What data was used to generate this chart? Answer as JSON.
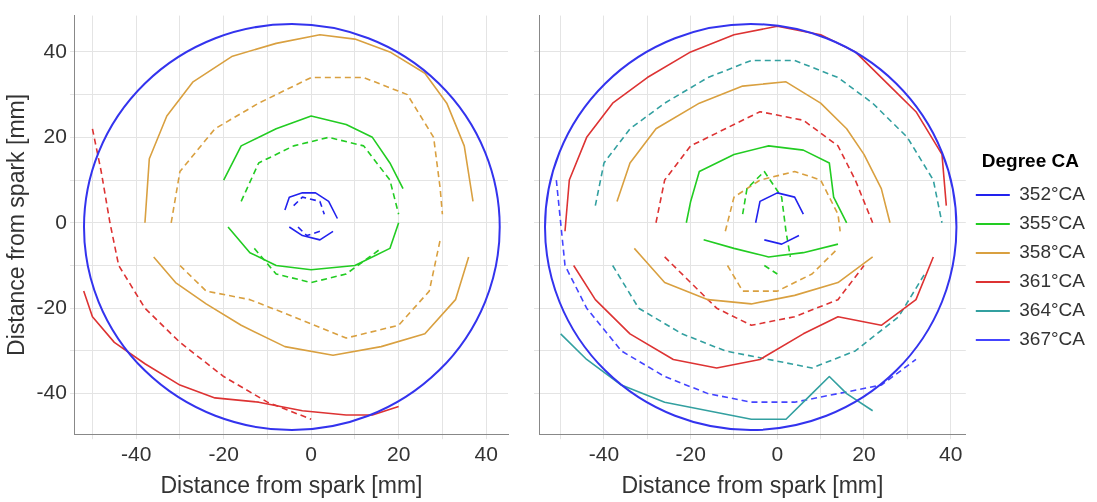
{
  "chart_data": [
    {
      "type": "line",
      "xlabel": "Distance from spark [mm]",
      "ylabel": "Distance from spark [mm]",
      "xlim": [
        -54,
        45
      ],
      "ylim": [
        -49.5,
        48.5
      ],
      "xticks": [
        {
          "value": -50,
          "label": null
        },
        -40,
        {
          "value": -30,
          "label": null
        },
        -20,
        {
          "value": -10,
          "label": null
        },
        0,
        {
          "value": 10,
          "label": null
        },
        20,
        {
          "value": 30,
          "label": null
        },
        40
      ],
      "yticks": [
        -40,
        {
          "value": -30,
          "label": null
        },
        -20,
        {
          "value": -10,
          "label": null
        },
        0,
        {
          "value": 10,
          "label": null
        },
        20,
        {
          "value": 30,
          "label": null
        },
        40
      ],
      "grid": true,
      "legend": false,
      "marker": "none",
      "series": [
        {
          "color": "#2222ee",
          "line_style": "solid",
          "x": [
            -6,
            -5,
            -2,
            1,
            4,
            6
          ],
          "values": [
            3,
            6,
            7,
            7,
            5,
            1
          ]
        },
        {
          "color": "#2222ee",
          "line_style": "solid",
          "x": [
            -5,
            -2,
            2,
            5
          ],
          "values": [
            -1,
            -3,
            -4,
            -2
          ]
        },
        {
          "color": "#2222ee",
          "line_style": "dashed",
          "x": [
            -4,
            -2,
            2,
            3
          ],
          "values": [
            4,
            6,
            5,
            2
          ]
        },
        {
          "color": "#2222ee",
          "line_style": "dashed",
          "x": [
            -3,
            -1,
            2
          ],
          "values": [
            -1,
            -3,
            -2
          ]
        },
        {
          "color": "#22cc22",
          "line_style": "solid",
          "x": [
            -20,
            -16,
            -8,
            0,
            8,
            14,
            18,
            21
          ],
          "values": [
            10,
            18,
            22,
            25,
            23,
            20,
            14,
            8
          ]
        },
        {
          "color": "#22cc22",
          "line_style": "solid",
          "x": [
            -19,
            -14,
            -8,
            0,
            10,
            18,
            20
          ],
          "values": [
            -1,
            -7,
            -10,
            -11,
            -10,
            -6,
            0
          ]
        },
        {
          "color": "#22cc22",
          "line_style": "dashed",
          "x": [
            -16,
            -12,
            -4,
            4,
            12,
            18,
            20
          ],
          "values": [
            5,
            14,
            18,
            20,
            18,
            10,
            2
          ]
        },
        {
          "color": "#22cc22",
          "line_style": "dashed",
          "x": [
            -13,
            -8,
            0,
            8,
            16
          ],
          "values": [
            -6,
            -12,
            -14,
            -12,
            -6
          ]
        },
        {
          "color": "#d9a040",
          "line_style": "solid",
          "x": [
            -38,
            -37,
            -33,
            -27,
            -18,
            -8,
            2,
            10,
            18,
            26,
            31,
            35,
            37
          ],
          "values": [
            0,
            15,
            25,
            33,
            39,
            42,
            44,
            43,
            40,
            35,
            28,
            18,
            5
          ]
        },
        {
          "color": "#d9a040",
          "line_style": "solid",
          "x": [
            -36,
            -31,
            -24,
            -16,
            -6,
            5,
            16,
            26,
            33,
            36
          ],
          "values": [
            -8,
            -14,
            -19,
            -24,
            -29,
            -31,
            -29,
            -26,
            -18,
            -8
          ]
        },
        {
          "color": "#d9a040",
          "line_style": "dashed",
          "x": [
            -32,
            -30,
            -22,
            -12,
            0,
            12,
            22,
            28,
            29.5,
            30
          ],
          "values": [
            0,
            12,
            22,
            28,
            34,
            34,
            30,
            20,
            8,
            2
          ]
        },
        {
          "color": "#d9a040",
          "line_style": "dashed",
          "x": [
            -30,
            -24,
            -14,
            -4,
            8,
            20,
            27,
            29.5
          ],
          "values": [
            -10,
            -16,
            -18,
            -22,
            -27,
            -24,
            -16,
            -4
          ]
        },
        {
          "color": "#dd3333",
          "line_style": "solid",
          "x": [
            -52,
            -50,
            -45,
            -38,
            -30,
            -22,
            -12,
            -2,
            8,
            14,
            20
          ],
          "values": [
            -16,
            -22,
            -28,
            -33,
            -38,
            -41,
            -42,
            -44,
            -45,
            -45,
            -43
          ]
        },
        {
          "color": "#dd3333",
          "line_style": "dashed",
          "x": [
            -50,
            -48,
            -46,
            -44,
            -38,
            -30,
            -20,
            -10,
            0
          ],
          "values": [
            22,
            12,
            0,
            -10,
            -20,
            -28,
            -36,
            -42,
            -46
          ]
        }
      ]
    },
    {
      "type": "line",
      "xlabel": "Distance from spark [mm]",
      "xlim": [
        -55,
        43.5
      ],
      "ylim": [
        -49.5,
        48.5
      ],
      "xticks": [
        {
          "value": -50,
          "label": null
        },
        -40,
        {
          "value": -30,
          "label": null
        },
        -20,
        {
          "value": -10,
          "label": null
        },
        0,
        {
          "value": 10,
          "label": null
        },
        20,
        {
          "value": 30,
          "label": null
        },
        40
      ],
      "yticks": [
        -40,
        {
          "value": -30,
          "label": null
        },
        -20,
        {
          "value": -10,
          "label": null
        },
        0,
        {
          "value": 10,
          "label": null
        },
        20,
        {
          "value": 30,
          "label": null
        },
        40
      ],
      "tick_labels": "x",
      "grid": true,
      "legend": "right",
      "legend_title": "Degree CA",
      "marker": "none",
      "series": [
        {
          "name": "352°CA",
          "color": "#2222ee",
          "line_style": "solid",
          "x": [
            -5,
            -4,
            0,
            4,
            6
          ],
          "values": [
            0,
            5,
            7,
            6,
            2
          ]
        },
        {
          "color": "#2222ee",
          "line_style": "solid",
          "x": [
            -3,
            1,
            5
          ],
          "values": [
            -4,
            -5,
            -3
          ]
        },
        {
          "name": "355°CA",
          "color": "#22cc22",
          "line_style": "solid",
          "x": [
            -21,
            -20,
            -18,
            -10,
            -2,
            6,
            12,
            13,
            16
          ],
          "values": [
            0,
            5,
            12,
            16,
            18,
            17,
            14,
            6,
            0
          ]
        },
        {
          "color": "#22cc22",
          "line_style": "solid",
          "x": [
            -17,
            -10,
            -2,
            6,
            14
          ],
          "values": [
            -4,
            -6,
            -8,
            -7,
            -5
          ]
        },
        {
          "color": "#22cc22",
          "line_style": "dashed",
          "x": [
            -8,
            -7,
            -3,
            1,
            2,
            3
          ],
          "values": [
            2,
            8,
            12,
            6,
            -2,
            -8
          ]
        },
        {
          "color": "#22cc22",
          "line_style": "dashed",
          "x": [
            -3,
            0
          ],
          "values": [
            -10,
            -12
          ]
        },
        {
          "name": "358°CA",
          "color": "#d9a040",
          "line_style": "solid",
          "x": [
            -37,
            -34,
            -28,
            -18,
            -8,
            2,
            10,
            16,
            20,
            24,
            26
          ],
          "values": [
            5,
            14,
            22,
            28,
            32,
            33,
            28,
            22,
            16,
            8,
            0
          ]
        },
        {
          "color": "#d9a040",
          "line_style": "solid",
          "x": [
            -33,
            -26,
            -16,
            -6,
            4,
            14,
            22
          ],
          "values": [
            -6,
            -14,
            -18,
            -19,
            -17,
            -14,
            -8
          ]
        },
        {
          "color": "#d9a040",
          "line_style": "dashed",
          "x": [
            -12,
            -10,
            -4,
            4,
            10,
            14,
            14.5
          ],
          "values": [
            -2,
            6,
            10,
            12,
            10,
            2,
            -2
          ]
        },
        {
          "color": "#d9a040",
          "line_style": "dashed",
          "x": [
            -11.5,
            -8,
            0,
            8,
            14
          ],
          "values": [
            -10,
            -16,
            -16,
            -12,
            -6
          ]
        },
        {
          "name": "361°CA",
          "color": "#dd3333",
          "line_style": "solid",
          "x": [
            -49,
            -48,
            -44,
            -38,
            -30,
            -20,
            -10,
            0,
            10,
            18,
            26,
            32,
            38,
            39
          ],
          "values": [
            -2,
            10,
            20,
            28,
            34,
            40,
            44,
            46,
            44,
            40,
            32,
            26,
            16,
            4
          ]
        },
        {
          "color": "#dd3333",
          "line_style": "solid",
          "x": [
            -47,
            -42,
            -34,
            -24,
            -14,
            -4,
            6,
            14,
            24,
            32,
            36
          ],
          "values": [
            -10,
            -18,
            -26,
            -32,
            -34,
            -32,
            -26,
            -22,
            -24,
            -18,
            -8
          ]
        },
        {
          "color": "#dd3333",
          "line_style": "dashed",
          "x": [
            -28,
            -26,
            -20,
            -12,
            -4,
            6,
            14,
            18,
            22
          ],
          "values": [
            0,
            10,
            18,
            22,
            26,
            24,
            18,
            10,
            0
          ]
        },
        {
          "color": "#dd3333",
          "line_style": "dashed",
          "x": [
            -26,
            -20,
            -14,
            -6,
            4,
            14,
            20
          ],
          "values": [
            -8,
            -14,
            -20,
            -24,
            -22,
            -18,
            -10
          ]
        },
        {
          "name": "364°CA",
          "color": "#33a0a0",
          "line_style": "solid",
          "x": [
            -50,
            -44,
            -36,
            -26,
            -16,
            -6,
            2,
            8,
            12,
            16,
            22
          ],
          "values": [
            -26,
            -32,
            -38,
            -42,
            -44,
            -46,
            -46,
            -40,
            -36,
            -40,
            -44
          ]
        },
        {
          "color": "#33a0a0",
          "line_style": "dashed",
          "x": [
            -42,
            -40,
            -34,
            -26,
            -16,
            -6,
            4,
            14,
            22,
            30,
            36,
            38
          ],
          "values": [
            4,
            14,
            22,
            28,
            34,
            38,
            38,
            34,
            28,
            20,
            10,
            0
          ]
        },
        {
          "color": "#33a0a0",
          "line_style": "dashed",
          "x": [
            -38,
            -32,
            -22,
            -12,
            -2,
            8,
            18,
            28,
            34
          ],
          "values": [
            -10,
            -20,
            -26,
            -30,
            -32,
            -34,
            -30,
            -22,
            -12
          ]
        },
        {
          "name": "367°CA",
          "color": "#4444ff",
          "line_style": "dashed",
          "x": [
            -51,
            -50,
            -49,
            -44,
            -36,
            -26,
            -16,
            -6,
            4,
            14,
            24,
            32
          ],
          "values": [
            10,
            0,
            -10,
            -20,
            -30,
            -36,
            -40,
            -42,
            -42,
            -40,
            -38,
            -32
          ]
        }
      ]
    }
  ]
}
